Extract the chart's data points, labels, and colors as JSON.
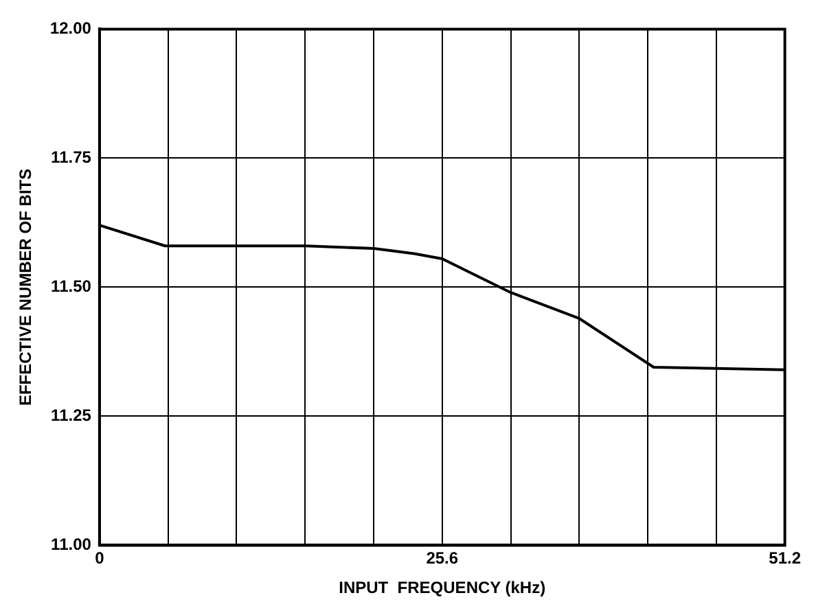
{
  "chart_data": {
    "type": "line",
    "xlabel": "INPUT  FREQUENCY (kHz)",
    "ylabel": "EFFECTIVE NUMBER OF BITS",
    "x": [
      0,
      4.9,
      15.4,
      20.5,
      23.5,
      25.6,
      30.7,
      35.8,
      41.4,
      51.2
    ],
    "series": [
      {
        "color": "#000000",
        "values": [
          11.62,
          11.58,
          11.58,
          11.575,
          11.565,
          11.555,
          11.49,
          11.44,
          11.345,
          11.34
        ]
      }
    ],
    "xlim": [
      0,
      51.2
    ],
    "xticks": [
      0,
      {
        "value": 5.12,
        "label": null
      },
      {
        "value": 10.24,
        "label": null
      },
      {
        "value": 15.36,
        "label": null
      },
      {
        "value": 20.48,
        "label": null
      },
      25.6,
      {
        "value": 30.72,
        "label": null
      },
      {
        "value": 35.84,
        "label": null
      },
      {
        "value": 40.96,
        "label": null
      },
      {
        "value": 46.08,
        "label": null
      },
      51.2
    ],
    "ylim": [
      11,
      12
    ],
    "yticks": [
      {
        "value": 11,
        "label": "11.00"
      },
      {
        "value": 11.25,
        "label": "11.25"
      },
      {
        "value": 11.5,
        "label": "11.50"
      },
      {
        "value": 11.75,
        "label": "11.75"
      },
      {
        "value": 12,
        "label": "12.00"
      }
    ],
    "grid": true,
    "legend": false,
    "marker": "none",
    "line_style": "solid"
  }
}
